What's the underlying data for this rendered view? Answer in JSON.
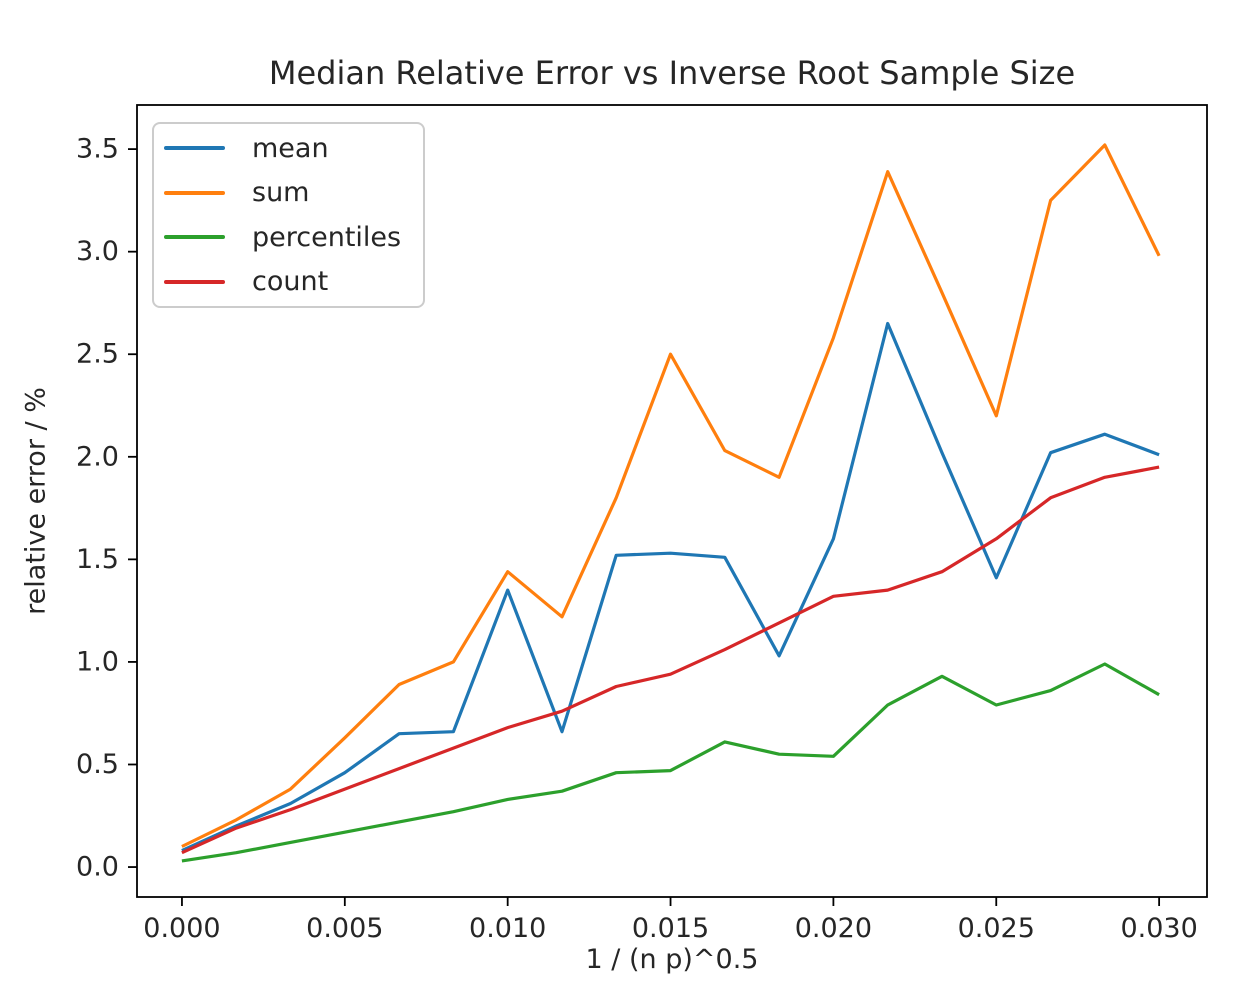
{
  "figure": {
    "title": "Median Relative Error vs Inverse Root Sample Size",
    "xlabel": "1 / (n p)^0.5",
    "ylabel": "relative error / %",
    "background": "#ffffff",
    "spine_color": "#000000",
    "text_color": "#262626"
  },
  "chart_data": {
    "type": "line",
    "title": "Median Relative Error vs Inverse Root Sample Size",
    "xlabel": "1 / (n p)^0.5",
    "ylabel": "relative error / %",
    "grid": false,
    "legend_position": "upper left",
    "xlim": [
      -0.00138,
      0.03147
    ],
    "ylim": [
      -0.146,
      3.715
    ],
    "xticks": [
      0.0,
      0.005,
      0.01,
      0.015,
      0.02,
      0.025,
      0.03
    ],
    "xtick_labels": [
      "0.000",
      "0.005",
      "0.010",
      "0.015",
      "0.020",
      "0.025",
      "0.030"
    ],
    "yticks": [
      0.0,
      0.5,
      1.0,
      1.5,
      2.0,
      2.5,
      3.0,
      3.5
    ],
    "ytick_labels": [
      "0.0",
      "0.5",
      "1.0",
      "1.5",
      "2.0",
      "2.5",
      "3.0",
      "3.5"
    ],
    "x": [
      0.0,
      0.001667,
      0.003333,
      0.005,
      0.006667,
      0.008333,
      0.01,
      0.011667,
      0.013333,
      0.015,
      0.016667,
      0.018333,
      0.02,
      0.021667,
      0.023333,
      0.025,
      0.026667,
      0.028333,
      0.03
    ],
    "series": [
      {
        "name": "mean",
        "color": "#1f77b4",
        "values": [
          0.08,
          0.2,
          0.31,
          0.46,
          0.65,
          0.66,
          1.35,
          0.66,
          1.52,
          1.53,
          1.51,
          1.03,
          1.6,
          2.65,
          2.02,
          1.41,
          2.02,
          2.11,
          2.01
        ]
      },
      {
        "name": "sum",
        "color": "#ff7f0e",
        "values": [
          0.1,
          0.23,
          0.38,
          0.63,
          0.89,
          1.0,
          1.44,
          1.22,
          1.8,
          2.5,
          2.03,
          1.9,
          2.58,
          3.39,
          2.8,
          2.2,
          3.25,
          3.52,
          2.98
        ]
      },
      {
        "name": "percentiles",
        "color": "#2ca02c",
        "values": [
          0.03,
          0.07,
          0.12,
          0.17,
          0.22,
          0.27,
          0.33,
          0.37,
          0.46,
          0.47,
          0.61,
          0.55,
          0.54,
          0.79,
          0.93,
          0.79,
          0.86,
          0.99,
          0.84
        ]
      },
      {
        "name": "count",
        "color": "#d62728",
        "values": [
          0.07,
          0.19,
          0.28,
          0.38,
          0.48,
          0.58,
          0.68,
          0.76,
          0.88,
          0.94,
          1.06,
          1.19,
          1.32,
          1.35,
          1.44,
          1.6,
          1.8,
          1.9,
          1.95
        ]
      }
    ]
  },
  "legend": {
    "entries": [
      "mean",
      "sum",
      "percentiles",
      "count"
    ]
  }
}
